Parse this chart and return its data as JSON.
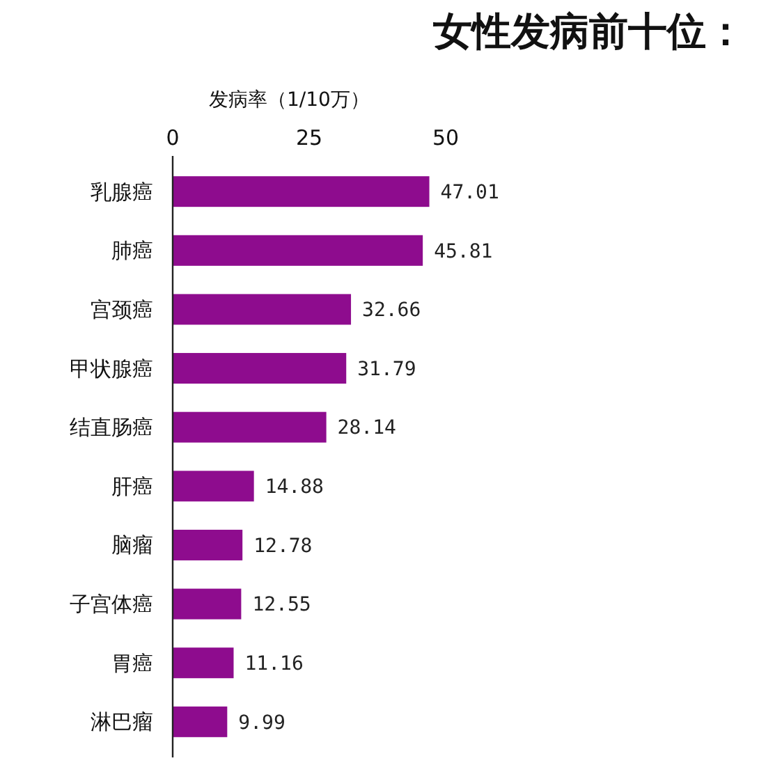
{
  "chart_data": {
    "type": "bar",
    "orientation": "horizontal",
    "title": "女性发病前十位：",
    "xlabel": "发病率（1/10万）",
    "categories": [
      "乳腺癌",
      "肺癌",
      "宫颈癌",
      "甲状腺癌",
      "结直肠癌",
      "肝癌",
      "脑瘤",
      "子宫体癌",
      "胃癌",
      "淋巴瘤"
    ],
    "values": [
      47.01,
      45.81,
      32.66,
      31.79,
      28.14,
      14.88,
      12.78,
      12.55,
      11.16,
      9.99
    ],
    "color": "#8e0c8e",
    "xlim": [
      0,
      50
    ],
    "xticks": [
      0,
      25,
      50
    ],
    "data_labels": true,
    "grid": false
  }
}
